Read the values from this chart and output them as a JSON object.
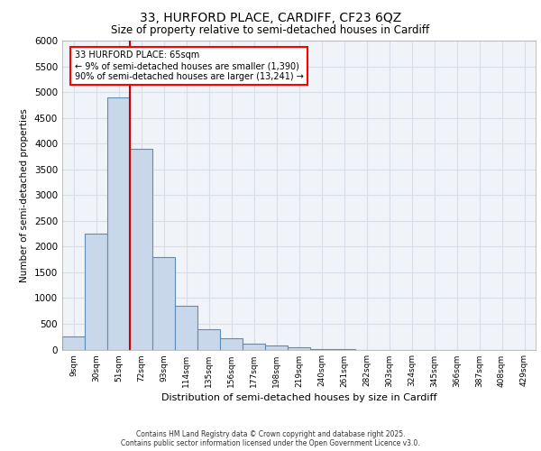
{
  "title1": "33, HURFORD PLACE, CARDIFF, CF23 6QZ",
  "title2": "Size of property relative to semi-detached houses in Cardiff",
  "xlabel": "Distribution of semi-detached houses by size in Cardiff",
  "ylabel": "Number of semi-detached properties",
  "categories": [
    "9sqm",
    "30sqm",
    "51sqm",
    "72sqm",
    "93sqm",
    "114sqm",
    "135sqm",
    "156sqm",
    "177sqm",
    "198sqm",
    "219sqm",
    "240sqm",
    "261sqm",
    "282sqm",
    "303sqm",
    "324sqm",
    "345sqm",
    "366sqm",
    "387sqm",
    "408sqm",
    "429sqm"
  ],
  "bar_values": [
    250,
    2250,
    4900,
    3900,
    1800,
    850,
    400,
    220,
    120,
    80,
    50,
    5,
    5,
    0,
    0,
    0,
    0,
    0,
    0,
    0,
    0
  ],
  "bar_color": "#c8d8ea",
  "bar_edge_color": "#5b8db8",
  "vline_pos": 2.5,
  "vline_color": "#cc0000",
  "annotation_text": "33 HURFORD PLACE: 65sqm\n← 9% of semi-detached houses are smaller (1,390)\n90% of semi-detached houses are larger (13,241) →",
  "ylim": [
    0,
    6000
  ],
  "yticks": [
    0,
    500,
    1000,
    1500,
    2000,
    2500,
    3000,
    3500,
    4000,
    4500,
    5000,
    5500,
    6000
  ],
  "bg_color": "#f0f4f8",
  "grid_color": "#d8dde8",
  "footer1": "Contains HM Land Registry data © Crown copyright and database right 2025.",
  "footer2": "Contains public sector information licensed under the Open Government Licence v3.0."
}
